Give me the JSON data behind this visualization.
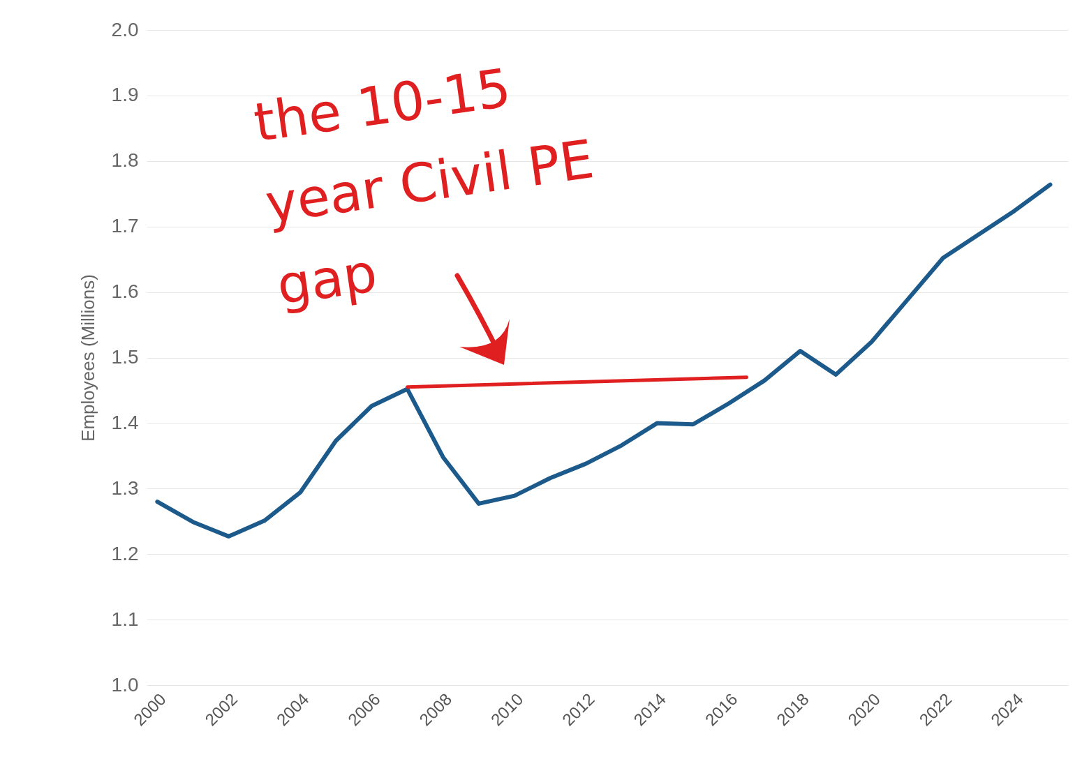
{
  "chart_data": {
    "type": "line",
    "ylabel": "Employees (Millions)",
    "x": [
      2000,
      2001,
      2002,
      2003,
      2004,
      2005,
      2006,
      2007,
      2008,
      2009,
      2010,
      2011,
      2012,
      2013,
      2014,
      2015,
      2016,
      2017,
      2018,
      2019,
      2020,
      2021,
      2022,
      2023,
      2024,
      2025
    ],
    "series": [
      {
        "color": "#1b5a8a",
        "values": [
          1.28,
          1.249,
          1.227,
          1.251,
          1.294,
          1.373,
          1.426,
          1.452,
          1.348,
          1.277,
          1.289,
          1.316,
          1.338,
          1.366,
          1.4,
          1.398,
          1.43,
          1.465,
          1.51,
          1.474,
          1.524,
          1.588,
          1.652,
          1.688,
          1.724,
          1.764
        ]
      },
      {
        "type": "line",
        "color": "#e02020",
        "x": [
          2007,
          2016.5
        ],
        "values": [
          1.455,
          1.47
        ]
      }
    ],
    "xlim": [
      1999.7,
      2025.5
    ],
    "xticks": [
      2000,
      2002,
      2004,
      2006,
      2008,
      2010,
      2012,
      2014,
      2016,
      2018,
      2020,
      2022,
      2024
    ],
    "ylim": [
      1.0,
      2.0
    ],
    "yticks": [
      {
        "value": 1.0,
        "label": "1.0"
      },
      1.1,
      1.2,
      1.3,
      1.4,
      1.5,
      1.6,
      1.7,
      1.8,
      1.9,
      {
        "value": 2.0,
        "label": "2.0"
      }
    ],
    "grid": "y",
    "annotations": [
      "the 10-15\nyear Civil PE\ngap"
    ]
  }
}
